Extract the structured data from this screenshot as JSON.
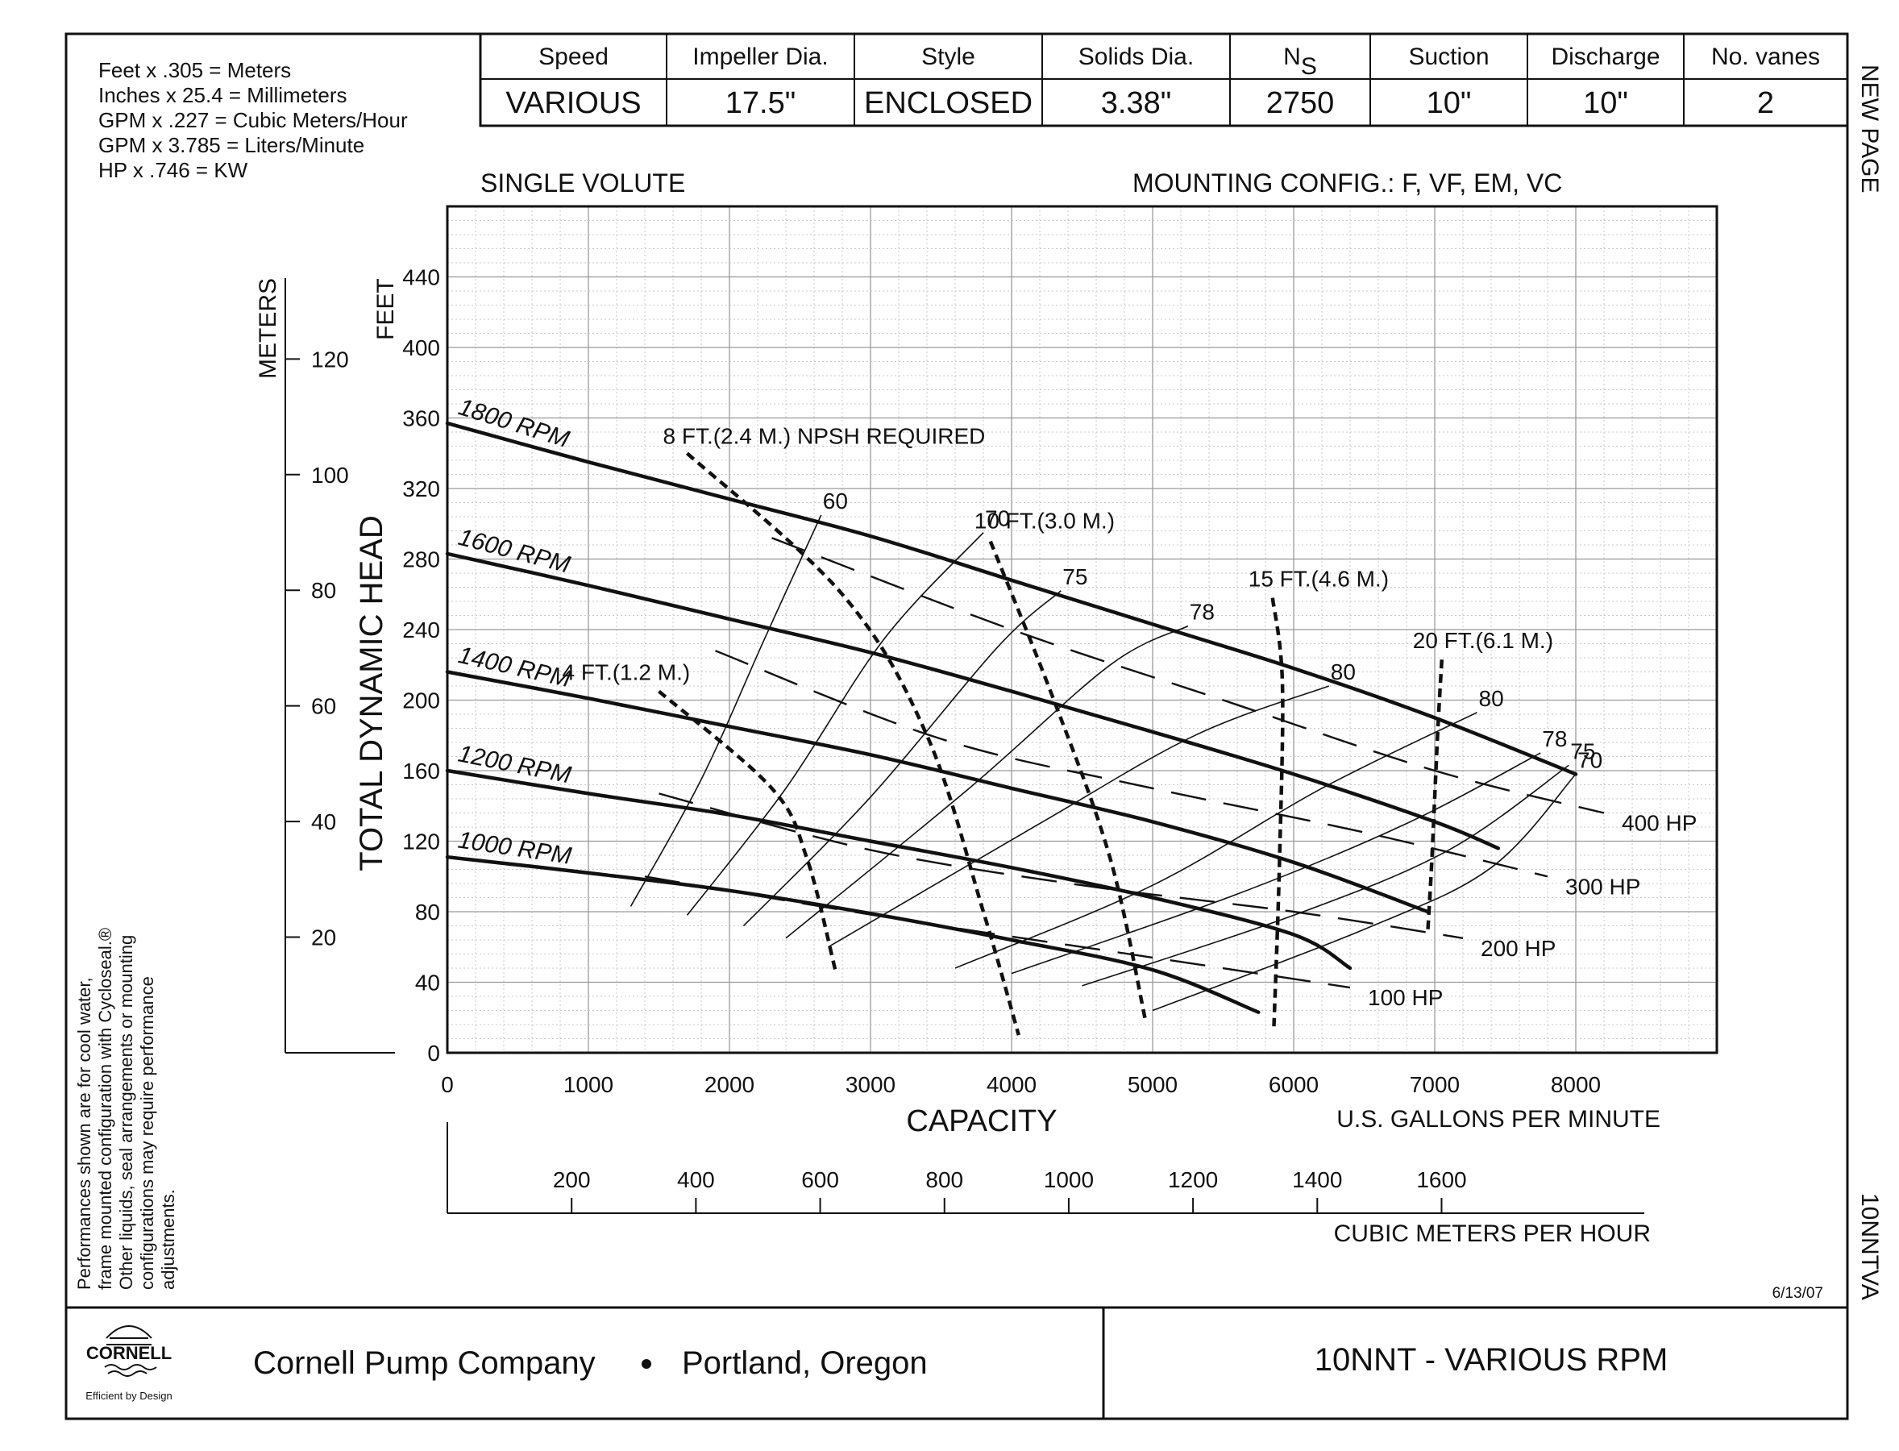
{
  "conversions": [
    "Feet x .305 = Meters",
    "Inches x 25.4 = Millimeters",
    "GPM x .227 = Cubic Meters/Hour",
    "GPM x 3.785 = Liters/Minute",
    "HP x .746 = KW"
  ],
  "spec_table": {
    "headers": [
      "Speed",
      "Impeller Dia.",
      "Style",
      "Solids Dia.",
      "N",
      "Suction",
      "Discharge",
      "No. vanes"
    ],
    "ns_subscript": "S",
    "values": [
      "VARIOUS",
      "17.5\"",
      "ENCLOSED",
      "3.38\"",
      "2750",
      "10\"",
      "10\"",
      "2"
    ]
  },
  "side_labels": {
    "top": "NEW PAGE",
    "bottom": "10NNTVA"
  },
  "volute": "SINGLE VOLUTE",
  "mounting_config": "MOUNTING CONFIG.:   F,  VF,  EM,  VC",
  "disclaimer": [
    "Performances shown are for cool water,",
    "frame mounted configuration with Cycloseal.®",
    "Other liquids, seal arrangements or mounting",
    "configurations may require performance",
    "adjustments."
  ],
  "date": "6/13/07",
  "footer": {
    "logo_text": "CORNELL",
    "logo_tagline": "Efficient by Design",
    "company": "Cornell Pump Company",
    "location": "Portland, Oregon",
    "model": "10NNT - VARIOUS RPM"
  },
  "chart_data": {
    "type": "line",
    "ylabel": "TOTAL DYNAMIC HEAD",
    "ylabel_feet": "FEET",
    "ylabel_meters": "METERS",
    "xlabel": "CAPACITY",
    "xlabel_units": "U.S. GALLONS PER MINUTE",
    "x2label_units": "CUBIC METERS PER HOUR",
    "xlim": [
      0,
      9000
    ],
    "ylim": [
      0,
      480
    ],
    "x_ticks": [
      0,
      1000,
      2000,
      3000,
      4000,
      5000,
      6000,
      7000,
      8000
    ],
    "y_ticks": [
      0,
      40,
      80,
      120,
      160,
      200,
      240,
      280,
      320,
      360,
      400,
      440
    ],
    "meters_ticks": [
      20,
      40,
      60,
      80,
      100,
      120
    ],
    "m3h_ticks": [
      200,
      400,
      600,
      800,
      1000,
      1200,
      1400,
      1600
    ],
    "grid": true,
    "rpm_curves": [
      {
        "name": "1800 RPM",
        "points": [
          [
            0,
            357
          ],
          [
            1000,
            335
          ],
          [
            2000,
            314
          ],
          [
            3000,
            293
          ],
          [
            4000,
            268
          ],
          [
            5000,
            243
          ],
          [
            6000,
            218
          ],
          [
            7000,
            190
          ],
          [
            8000,
            158
          ]
        ]
      },
      {
        "name": "1600 RPM",
        "points": [
          [
            0,
            283
          ],
          [
            1000,
            265
          ],
          [
            2000,
            246
          ],
          [
            3000,
            227
          ],
          [
            4000,
            205
          ],
          [
            5000,
            182
          ],
          [
            6000,
            158
          ],
          [
            7000,
            131
          ],
          [
            7450,
            116
          ]
        ]
      },
      {
        "name": "1400 RPM",
        "points": [
          [
            0,
            216
          ],
          [
            1000,
            201
          ],
          [
            2000,
            185
          ],
          [
            3000,
            169
          ],
          [
            4000,
            150
          ],
          [
            5000,
            131
          ],
          [
            6000,
            108
          ],
          [
            6950,
            80
          ]
        ]
      },
      {
        "name": "1200 RPM",
        "points": [
          [
            0,
            160
          ],
          [
            1000,
            147
          ],
          [
            2000,
            135
          ],
          [
            3000,
            120
          ],
          [
            4000,
            105
          ],
          [
            5000,
            88
          ],
          [
            6000,
            67
          ],
          [
            6400,
            48
          ]
        ]
      },
      {
        "name": "1000 RPM",
        "points": [
          [
            0,
            111
          ],
          [
            1000,
            102
          ],
          [
            2000,
            92
          ],
          [
            3000,
            79
          ],
          [
            4000,
            64
          ],
          [
            5000,
            47
          ],
          [
            5750,
            23
          ]
        ]
      }
    ],
    "efficiency_curves": [
      {
        "name": "60",
        "points": [
          [
            1300,
            83
          ],
          [
            1800,
            155
          ],
          [
            2250,
            235
          ],
          [
            2650,
            305
          ]
        ]
      },
      {
        "name": "70",
        "points": [
          [
            1700,
            78
          ],
          [
            2400,
            150
          ],
          [
            3100,
            235
          ],
          [
            3800,
            295
          ]
        ]
      },
      {
        "name": "75",
        "points": [
          [
            2100,
            72
          ],
          [
            3000,
            145
          ],
          [
            3900,
            230
          ],
          [
            4350,
            262
          ]
        ]
      },
      {
        "name": "78",
        "points": [
          [
            2400,
            65
          ],
          [
            3700,
            150
          ],
          [
            4700,
            220
          ],
          [
            5250,
            242
          ]
        ]
      },
      {
        "name": "80",
        "points": [
          [
            2700,
            60
          ],
          [
            4200,
            130
          ],
          [
            5300,
            180
          ],
          [
            6250,
            208
          ]
        ]
      },
      {
        "name": "80",
        "points": [
          [
            3600,
            48
          ],
          [
            5000,
            95
          ],
          [
            6200,
            150
          ],
          [
            7300,
            193
          ]
        ]
      },
      {
        "name": "78",
        "points": [
          [
            4000,
            45
          ],
          [
            5600,
            90
          ],
          [
            6800,
            130
          ],
          [
            7750,
            170
          ]
        ]
      },
      {
        "name": "75",
        "points": [
          [
            4500,
            38
          ],
          [
            6000,
            78
          ],
          [
            7100,
            115
          ],
          [
            7950,
            163
          ]
        ]
      },
      {
        "name": "70",
        "points": [
          [
            5000,
            24
          ],
          [
            6500,
            70
          ],
          [
            7400,
            105
          ],
          [
            8000,
            158
          ]
        ]
      }
    ],
    "horsepower_curves": [
      {
        "name": "400 HP",
        "points": [
          [
            2300,
            292
          ],
          [
            4000,
            240
          ],
          [
            5500,
            200
          ],
          [
            7000,
            160
          ],
          [
            8200,
            136
          ]
        ]
      },
      {
        "name": "300 HP",
        "points": [
          [
            1900,
            228
          ],
          [
            3500,
            178
          ],
          [
            5000,
            150
          ],
          [
            6500,
            125
          ],
          [
            7800,
            100
          ]
        ]
      },
      {
        "name": "200 HP",
        "points": [
          [
            1500,
            147
          ],
          [
            3000,
            115
          ],
          [
            4500,
            95
          ],
          [
            6000,
            80
          ],
          [
            7200,
            65
          ]
        ]
      },
      {
        "name": "100 HP",
        "points": [
          [
            1400,
            100
          ],
          [
            2500,
            85
          ],
          [
            3500,
            72
          ],
          [
            5000,
            54
          ],
          [
            6400,
            37
          ]
        ]
      }
    ],
    "npsh_curves": [
      {
        "name": "4 FT.(1.2 M.)",
        "points": [
          [
            1500,
            205
          ],
          [
            2300,
            150
          ],
          [
            2550,
            110
          ],
          [
            2750,
            47
          ]
        ]
      },
      {
        "name": "8 FT.(2.4 M.) NPSH REQUIRED",
        "points": [
          [
            1700,
            340
          ],
          [
            2800,
            260
          ],
          [
            3400,
            180
          ],
          [
            3800,
            80
          ],
          [
            4050,
            10
          ]
        ]
      },
      {
        "name": "10 FT.(3.0 M.)",
        "points": [
          [
            3850,
            290
          ],
          [
            4300,
            200
          ],
          [
            4700,
            110
          ],
          [
            4950,
            18
          ]
        ]
      },
      {
        "name": "15 FT.(4.6 M.)",
        "points": [
          [
            5850,
            258
          ],
          [
            5920,
            210
          ],
          [
            5900,
            110
          ],
          [
            5860,
            15
          ]
        ]
      },
      {
        "name": "20 FT.(6.1 M.)",
        "points": [
          [
            7050,
            223
          ],
          [
            7020,
            180
          ],
          [
            6980,
            110
          ],
          [
            6950,
            68
          ]
        ]
      }
    ]
  }
}
